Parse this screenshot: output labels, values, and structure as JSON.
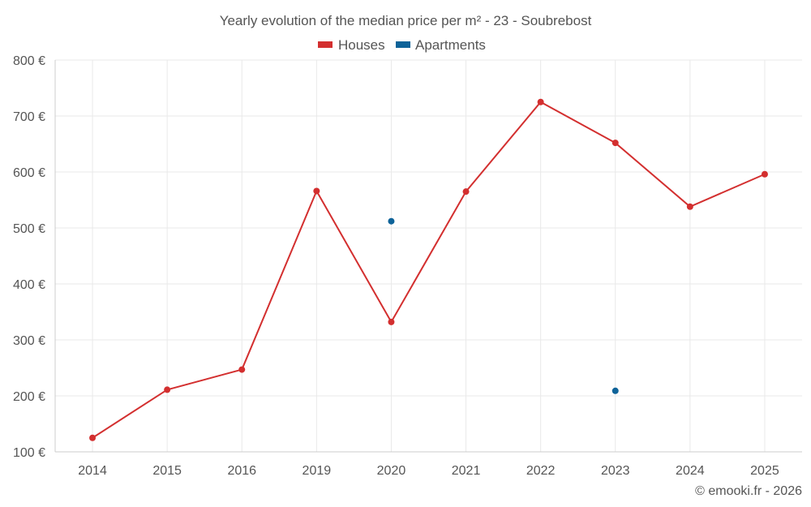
{
  "chart_data": {
    "type": "line",
    "title": "Yearly evolution of the median price per m² - 23 - Soubrebost",
    "categories": [
      "2014",
      "2015",
      "2016",
      "2019",
      "2020",
      "2021",
      "2022",
      "2023",
      "2024",
      "2025"
    ],
    "series": [
      {
        "name": "Houses",
        "color": "#d32f2f",
        "values": [
          125,
          211,
          247,
          566,
          332,
          565,
          725,
          652,
          538,
          596
        ]
      },
      {
        "name": "Apartments",
        "color": "#0e6399",
        "values": [
          null,
          null,
          null,
          null,
          512,
          null,
          null,
          209,
          null,
          null
        ]
      }
    ],
    "yticks": [
      100,
      200,
      300,
      400,
      500,
      600,
      700,
      800
    ],
    "ytick_labels": [
      "100 €",
      "200 €",
      "300 €",
      "400 €",
      "500 €",
      "600 €",
      "700 €",
      "800 €"
    ],
    "ylim": [
      100,
      800
    ],
    "xlabel": "",
    "ylabel": "",
    "grid": true,
    "legend_position": "top-center"
  },
  "credit": "© emooki.fr - 2026"
}
